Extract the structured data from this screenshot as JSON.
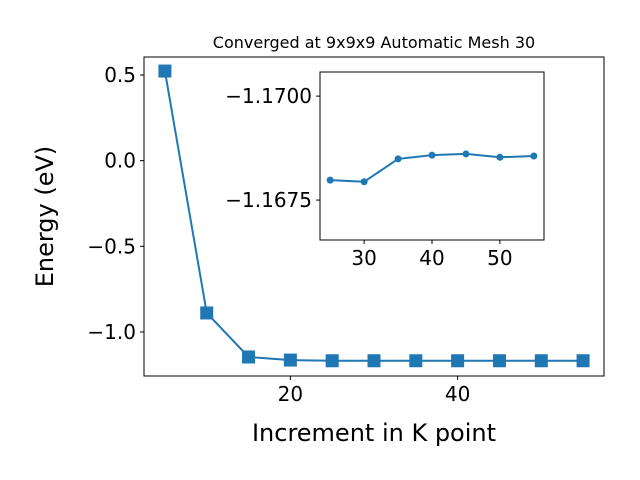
{
  "chart_data": [
    {
      "type": "line",
      "title": "Converged at 9x9x9 Automatic Mesh 30",
      "x_label": "Increment in K point",
      "y_label": "Energy (eV)",
      "marker": "square",
      "color": "#1f77b4",
      "x": [
        5,
        10,
        15,
        20,
        25,
        30,
        35,
        40,
        45,
        50,
        55
      ],
      "values": [
        0.523,
        -0.889,
        -1.146,
        -1.164,
        -1.168,
        -1.168,
        -1.168,
        -1.168,
        -1.168,
        -1.168,
        -1.168
      ],
      "xlim": [
        2.5,
        57.5
      ],
      "ylim": [
        -1.257,
        0.605
      ],
      "xticks": [
        20,
        40
      ],
      "yticks": [
        0.5,
        {
          "value": 0,
          "label": "0.0"
        },
        {
          "value": -0.5,
          "label": "−0.5"
        },
        {
          "value": -1,
          "label": "−1.0"
        }
      ]
    },
    {
      "type": "line",
      "marker": "circle",
      "color": "#1f77b4",
      "x": [
        25,
        30,
        35,
        40,
        45,
        50,
        55
      ],
      "values": [
        -1.16798,
        -1.16794,
        -1.16849,
        -1.16858,
        -1.16861,
        -1.16853,
        -1.16856
      ],
      "xlim": [
        23.5,
        56.5
      ],
      "ylim": [
        -1.16654,
        -1.17058
      ],
      "xticks": [
        30,
        40,
        50
      ],
      "yticks": [
        {
          "value": -1.17,
          "label": "−1.1700"
        },
        {
          "value": -1.1675,
          "label": "−1.1675"
        }
      ]
    }
  ]
}
